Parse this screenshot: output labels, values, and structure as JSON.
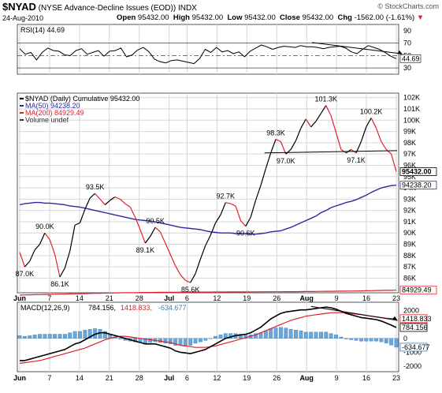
{
  "header": {
    "symbol": "$NYAD",
    "description": "(NYSE Advance-Decline Issues (EOD))",
    "exchange": "INDX",
    "date": "24-Aug-2010",
    "open_label": "Open",
    "open": "95432.00",
    "high_label": "High",
    "high": "95432.00",
    "low_label": "Low",
    "low": "95432.00",
    "close_label": "Close",
    "close": "95432.00",
    "chg_label": "Chg",
    "chg": "-1562.00 (-1.61%)",
    "chg_marker": "▼",
    "watermark": "© StockCharts.com"
  },
  "colors": {
    "price": "#000000",
    "ma50": "#2a2aa0",
    "ma200": "#e0202a",
    "volume_bar": "#6aa6d8",
    "macd": "#000000",
    "signal": "#e0202a",
    "trendline": "#000000"
  },
  "chart_data": [
    {
      "type": "line",
      "name": "RSI panel",
      "legend": "RSI(14) 44.69",
      "ylim": [
        20,
        100
      ],
      "yticks": [
        "90",
        "70",
        "50",
        "30"
      ],
      "reference_lines": [
        70,
        50,
        30
      ],
      "last_value_label": "44.69",
      "values": [
        61,
        52,
        55,
        43,
        55,
        62,
        58,
        57,
        51,
        50,
        58,
        61,
        52,
        55,
        58,
        49,
        57,
        58,
        62,
        48,
        51,
        59,
        63,
        56,
        44,
        40,
        38,
        42,
        43,
        41,
        39,
        37,
        45,
        60,
        55,
        63,
        56,
        58,
        53,
        56,
        48,
        57,
        62,
        67,
        64,
        60,
        63,
        65,
        64,
        63,
        66,
        64,
        64,
        63,
        61,
        63,
        64,
        65,
        62,
        56,
        53,
        60,
        66,
        63,
        60,
        55,
        49,
        45
      ]
    },
    {
      "type": "line",
      "name": "Price panel",
      "legend": {
        "price": "$NYAD (Daily) Cumulative 95432.00",
        "ma50": "MA(50) 94238.20",
        "ma200": "MA(200) 84929.49",
        "volume": "Volume undef"
      },
      "ylim": [
        84700,
        102400
      ],
      "yticks": [
        "102K",
        "101K",
        "100K",
        "99K",
        "98K",
        "97K",
        "96K",
        "95K",
        "94K",
        "93K",
        "92K",
        "91K",
        "90K",
        "89K",
        "88K",
        "87K",
        "86K"
      ],
      "price": [
        88300,
        87000,
        87500,
        88500,
        89000,
        90000,
        89400,
        88100,
        86100,
        86900,
        88400,
        90700,
        90900,
        92100,
        93100,
        93500,
        93000,
        92500,
        92900,
        93200,
        93000,
        92600,
        92300,
        91400,
        90300,
        89100,
        89700,
        90500,
        90100,
        89100,
        88100,
        87100,
        86300,
        85800,
        85600,
        86400,
        87700,
        88900,
        89800,
        90900,
        91600,
        92700,
        92600,
        92400,
        91100,
        90600,
        91400,
        92900,
        94200,
        95700,
        97100,
        98300,
        98100,
        97000,
        97400,
        98200,
        99300,
        100100,
        99400,
        99900,
        100600,
        101300,
        100400,
        98900,
        97400,
        97100,
        97400,
        97100,
        98100,
        99400,
        100200,
        99300,
        98100,
        97400,
        97000,
        95432
      ],
      "ma50": [
        92500,
        92600,
        92650,
        92700,
        92700,
        92650,
        92650,
        92600,
        92550,
        92500,
        92400,
        92350,
        92300,
        92200,
        92100,
        92000,
        91900,
        91800,
        91700,
        91600,
        91500,
        91400,
        91300,
        91200,
        91150,
        91100,
        91050,
        91000,
        90900,
        90800,
        90700,
        90600,
        90500,
        90450,
        90400,
        90350,
        90300,
        90200,
        90100,
        90050,
        90000,
        90000,
        90000,
        89950,
        89950,
        89950,
        89900,
        89900,
        89950,
        90000,
        90100,
        90150,
        90200,
        90350,
        90500,
        90700,
        90900,
        91100,
        91300,
        91500,
        91800,
        92000,
        92250,
        92400,
        92550,
        92700,
        92800,
        92950,
        93150,
        93350,
        93600,
        93800,
        94000,
        94100,
        94200,
        94238
      ],
      "ma200": [
        84500,
        84510,
        84520,
        84530,
        84540,
        84550,
        84560,
        84570,
        84580,
        84590,
        84600,
        84610,
        84620,
        84630,
        84640,
        84650,
        84660,
        84670,
        84680,
        84690,
        84700,
        84705,
        84710,
        84715,
        84720,
        84725,
        84730,
        84735,
        84740,
        84745,
        84750,
        84752,
        84754,
        84756,
        84758,
        84760,
        84762,
        84764,
        84766,
        84768,
        84770,
        84772,
        84774,
        84776,
        84778,
        84780,
        84782,
        84784,
        84786,
        84788,
        84790,
        84792,
        84794,
        84796,
        84798,
        84800,
        84805,
        84810,
        84815,
        84820,
        84825,
        84830,
        84835,
        84840,
        84845,
        84850,
        84855,
        84860,
        84870,
        84880,
        84890,
        84900,
        84910,
        84915,
        84920,
        84929
      ],
      "annotations": [
        "87.0K",
        "86.1K",
        "90.0K",
        "93.5K",
        "89.1K",
        "90.5K",
        "85.6K",
        "92.7K",
        "90.6K",
        "98.3K",
        "97.0K",
        "101.3K",
        "97.1K",
        "100.2K"
      ],
      "last_labels": {
        "close": "95432.00",
        "ma50": "94238.20",
        "ma200": "84929.49"
      },
      "trendline": {
        "from": [
          50,
          97100
        ],
        "to": [
          75,
          97300
        ]
      }
    },
    {
      "type": "line",
      "name": "MACD panel",
      "legend": {
        "title": "MACD(12,26,9)",
        "macd": "784.156,",
        "signal": "1418.833,",
        "hist": "-634.677"
      },
      "ylim": [
        -2400,
        2600
      ],
      "yticks": [
        "2000",
        "1000",
        "0",
        "-1000",
        "-2000"
      ],
      "last_labels": {
        "signal": "1418.833",
        "macd": "784.156",
        "hist": "-634.677"
      },
      "macd": [
        -1600,
        -1600,
        -1500,
        -1400,
        -1300,
        -1200,
        -1100,
        -1000,
        -900,
        -800,
        -600,
        -400,
        -300,
        -100,
        100,
        300,
        400,
        400,
        300,
        200,
        100,
        0,
        -100,
        -200,
        -300,
        -400,
        -400,
        -400,
        -500,
        -600,
        -700,
        -900,
        -1000,
        -1050,
        -1100,
        -1000,
        -900,
        -800,
        -600,
        -400,
        -200,
        0,
        100,
        200,
        250,
        300,
        400,
        600,
        800,
        1100,
        1400,
        1600,
        1800,
        1900,
        1950,
        2000,
        2050,
        2050,
        2100,
        2150,
        2200,
        2250,
        2200,
        2100,
        1950,
        1800,
        1700,
        1600,
        1500,
        1450,
        1400,
        1350,
        1250,
        1100,
        950,
        784
      ],
      "signal": [
        -1800,
        -1750,
        -1700,
        -1650,
        -1600,
        -1500,
        -1400,
        -1300,
        -1200,
        -1100,
        -1000,
        -900,
        -800,
        -700,
        -550,
        -400,
        -250,
        -100,
        0,
        100,
        150,
        150,
        100,
        50,
        0,
        -50,
        -100,
        -150,
        -200,
        -250,
        -300,
        -400,
        -500,
        -550,
        -600,
        -650,
        -650,
        -650,
        -600,
        -550,
        -450,
        -350,
        -250,
        -150,
        -50,
        50,
        150,
        250,
        400,
        550,
        700,
        850,
        1000,
        1150,
        1300,
        1400,
        1500,
        1600,
        1650,
        1700,
        1750,
        1800,
        1850,
        1850,
        1850,
        1850,
        1800,
        1750,
        1700,
        1650,
        1600,
        1550,
        1500,
        1450,
        1430,
        1418
      ],
      "hist": [
        200,
        150,
        200,
        250,
        300,
        300,
        300,
        300,
        300,
        300,
        400,
        500,
        500,
        600,
        650,
        700,
        650,
        500,
        300,
        100,
        -50,
        -150,
        -200,
        -250,
        -300,
        -350,
        -300,
        -250,
        -300,
        -350,
        -400,
        -500,
        -500,
        -500,
        -500,
        -350,
        -250,
        -150,
        0,
        150,
        250,
        350,
        350,
        350,
        300,
        250,
        250,
        350,
        400,
        550,
        700,
        750,
        800,
        750,
        650,
        600,
        550,
        450,
        450,
        450,
        450,
        450,
        350,
        250,
        100,
        -50,
        -100,
        -150,
        -200,
        -200,
        -200,
        -200,
        -250,
        -350,
        -480,
        -634
      ]
    }
  ],
  "x_axis": {
    "labels": [
      "Jun",
      "7",
      "14",
      "21",
      "28",
      "Jul",
      "6",
      "12",
      "19",
      "26",
      "Aug",
      "9",
      "16",
      "23"
    ],
    "label_index": [
      0,
      5,
      10,
      15,
      20,
      25,
      28,
      33,
      38,
      43,
      48,
      53,
      58,
      63
    ]
  }
}
